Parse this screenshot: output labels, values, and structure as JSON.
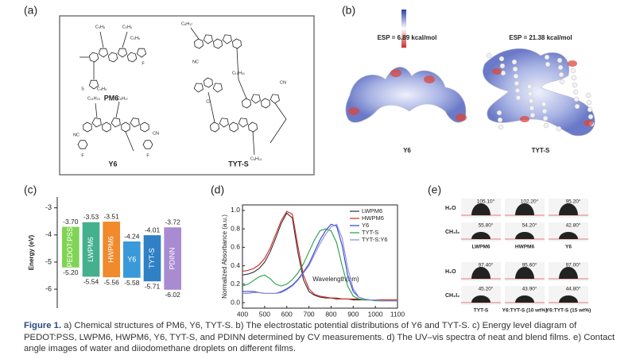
{
  "panel_labels": [
    "(a)",
    "(b)",
    "(c)",
    "(d)",
    "(e)"
  ],
  "structures": {
    "molecules": [
      "PM6",
      "Y6",
      "TYT-S"
    ],
    "substituents": {
      "PM6": [
        "C₄H₉",
        "C₂H₅",
        "C₄H₉",
        "C₂H₅",
        "F",
        "S"
      ],
      "Y6": [
        "C₁₁H₂₃",
        "C₈H₁₇",
        "NC",
        "CN",
        "F",
        "F"
      ],
      "TYT-S": [
        "C₈H₁₇",
        "C₁₀H₂₁",
        "NC",
        "CN",
        "Cl",
        "C₆H₁₃"
      ]
    }
  },
  "esp": {
    "titles": [
      "ESP = 6.89 kcal/mol",
      "ESP = 21.38 kcal/mol"
    ],
    "molecules": [
      "Y6",
      "TYT-S"
    ]
  },
  "chart_data": [
    {
      "type": "floating-bar",
      "y_label": "Energy (eV)",
      "categories": [
        "PEDOT:PSS",
        "LWPM6",
        "HWPM6",
        "Y6",
        "TYT-S",
        "PDINN"
      ],
      "colors": [
        "#7fd454",
        "#45b08e",
        "#f08a2c",
        "#3a9ad9",
        "#2f80c4",
        "#a98bd2"
      ],
      "lumo": [
        -3.7,
        -3.53,
        -3.51,
        -4.24,
        -4.01,
        -3.72
      ],
      "lumo_labels": [
        "-3.70",
        "-3.53",
        "-3.51",
        "-4.24",
        "-4.01",
        "-3.72"
      ],
      "homo": [
        -5.2,
        -5.54,
        -5.56,
        -5.58,
        -5.71,
        -6.02
      ],
      "homo_labels": [
        "-5.20",
        "-5.54",
        "-5.56",
        "-5.58",
        "-5.71",
        "-6.02"
      ],
      "ylim": [
        -6.7,
        -2.6
      ],
      "yticks": [
        -3,
        -4,
        -5,
        -6
      ]
    },
    {
      "type": "line",
      "x_label": "Wavelength(nm)",
      "y_label": "Normalized Absorbance (a.u.)",
      "x": [
        400,
        425,
        450,
        475,
        500,
        525,
        550,
        575,
        600,
        625,
        650,
        675,
        700,
        725,
        750,
        775,
        800,
        825,
        850,
        875,
        900,
        925,
        950,
        975,
        1000,
        1025,
        1050,
        1075,
        1100
      ],
      "series": [
        {
          "name": "LWPM6",
          "color": "#333333",
          "values": [
            0.3,
            0.31,
            0.33,
            0.37,
            0.44,
            0.55,
            0.7,
            0.86,
            0.97,
            0.92,
            0.55,
            0.25,
            0.12,
            0.08,
            0.06,
            0.05,
            0.05,
            0.04,
            0.04,
            0.04,
            0.03,
            0.03,
            0.03,
            0.03,
            0.03,
            0.03,
            0.03,
            0.03,
            0.03
          ]
        },
        {
          "name": "HWPM6",
          "color": "#d62222",
          "values": [
            0.34,
            0.35,
            0.37,
            0.41,
            0.48,
            0.59,
            0.74,
            0.89,
            0.99,
            0.96,
            0.62,
            0.3,
            0.15,
            0.09,
            0.07,
            0.06,
            0.05,
            0.05,
            0.04,
            0.04,
            0.04,
            0.04,
            0.03,
            0.03,
            0.03,
            0.03,
            0.03,
            0.03,
            0.03
          ]
        },
        {
          "name": "Y6",
          "color": "#2b3fd0",
          "values": [
            0.12,
            0.12,
            0.12,
            0.11,
            0.1,
            0.1,
            0.1,
            0.12,
            0.15,
            0.19,
            0.25,
            0.33,
            0.42,
            0.55,
            0.68,
            0.78,
            0.85,
            0.83,
            0.62,
            0.3,
            0.12,
            0.06,
            0.04,
            0.03,
            0.03,
            0.02,
            0.02,
            0.02,
            0.02
          ]
        },
        {
          "name": "TYT-S",
          "color": "#22a040",
          "values": [
            0.18,
            0.2,
            0.24,
            0.28,
            0.3,
            0.26,
            0.2,
            0.18,
            0.2,
            0.25,
            0.32,
            0.42,
            0.55,
            0.68,
            0.78,
            0.8,
            0.78,
            0.65,
            0.4,
            0.18,
            0.07,
            0.04,
            0.03,
            0.03,
            0.02,
            0.02,
            0.02,
            0.02,
            0.02
          ]
        },
        {
          "name": "TYT-S:Y6",
          "color": "#8a8ad8",
          "values": [
            0.1,
            0.1,
            0.11,
            0.11,
            0.1,
            0.1,
            0.1,
            0.11,
            0.14,
            0.18,
            0.24,
            0.32,
            0.4,
            0.52,
            0.64,
            0.74,
            0.82,
            0.85,
            0.7,
            0.38,
            0.15,
            0.06,
            0.04,
            0.03,
            0.03,
            0.02,
            0.02,
            0.02,
            0.02
          ]
        }
      ],
      "xlim": [
        400,
        1100
      ],
      "xticks": [
        400,
        500,
        600,
        700,
        800,
        900,
        1000,
        1100
      ],
      "ylim": [
        -0.06,
        1.06
      ],
      "yticks": [
        {
          "value": 0,
          "label": "0.0"
        },
        0.2,
        0.4,
        0.6,
        0.8,
        {
          "value": 1,
          "label": "1.0"
        }
      ],
      "legend": "upper-right"
    }
  ],
  "contact_angles": {
    "liquids": [
      "H₂O",
      "CH₂I₂"
    ],
    "blocks": [
      {
        "films": [
          "LWPM6",
          "HWPM6",
          "Y6"
        ],
        "water": [
          "105.10°",
          "102.20°",
          "95.20°"
        ],
        "diiodomethane": [
          "55.80°",
          "54.20°",
          "42.80°"
        ]
      },
      {
        "films": [
          "TYT-S",
          "Y6:TYT-S (10 wt%)",
          "Y6:TYT-S (15 wt%)"
        ],
        "water": [
          "97.40°",
          "95.60°",
          "97.00°"
        ],
        "diiodomethane": [
          "45.20°",
          "43.90°",
          "44.80°"
        ]
      }
    ]
  },
  "caption": {
    "label": "Figure 1.",
    "text": " a) Chemical structures of PM6, Y6, TYT-S. b) The electrostatic potential distributions of Y6 and TYT-S. c) Energy level diagram of PEDOT:PSS, LWPM6, HWPM6, Y6, TYT-S, and PDINN determined by CV measurements. d) The UV–vis spectra of neat and blend films. e) Contact angle images of water and diiodomethane droplets on different films."
  }
}
